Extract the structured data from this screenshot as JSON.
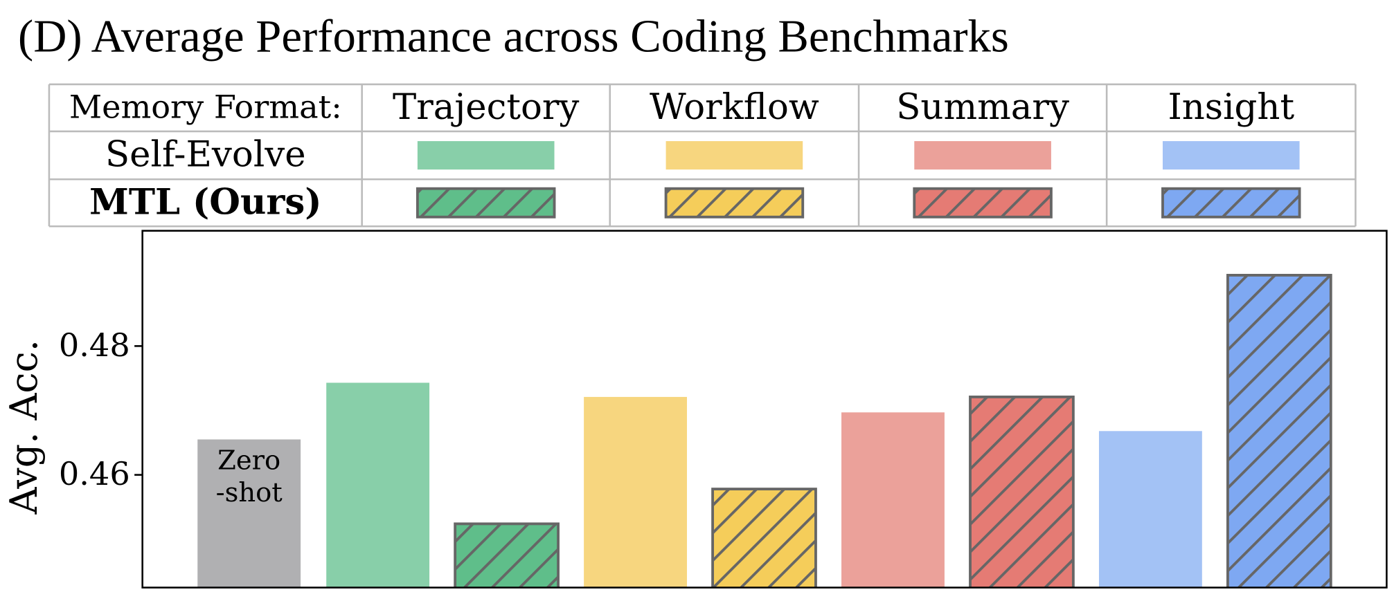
{
  "chart_data": {
    "type": "bar",
    "title": "(D) Average Performance across Coding Benchmarks",
    "ylabel": "Avg. Acc.",
    "legend": {
      "header": "Memory Format:",
      "formats": [
        "Trajectory",
        "Workflow",
        "Summary",
        "Insight"
      ],
      "rows": [
        "Self-Evolve",
        "MTL (Ours)"
      ]
    },
    "values": [
      0.4655,
      0.4743,
      0.4524,
      0.4721,
      0.4578,
      0.4697,
      0.4721,
      0.4668,
      0.491
    ],
    "colors": [
      "#b0b0b2",
      "#88cfa9",
      "#5fbe8a",
      "#f7d67f",
      "#f5cd5a",
      "#eba19a",
      "#e57b74",
      "#a3c2f5",
      "#7ea8f2"
    ],
    "hatched": [
      false,
      false,
      true,
      false,
      true,
      false,
      true,
      false,
      true
    ],
    "annotation": [
      "Zero",
      "-shot"
    ],
    "ylim": [
      0.4425,
      0.4979
    ],
    "yticks": [
      0.46,
      0.48
    ]
  }
}
